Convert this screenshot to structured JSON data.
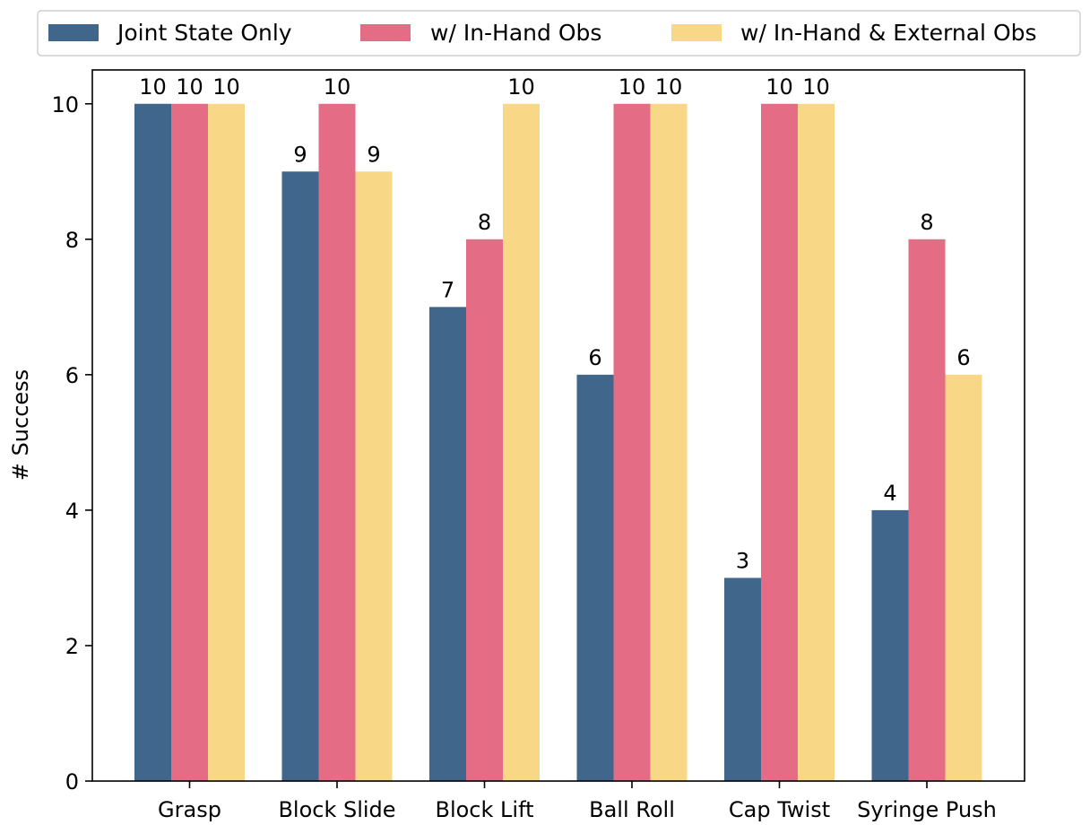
{
  "chart_data": {
    "type": "bar",
    "title": "",
    "xlabel": "",
    "ylabel": "# Success",
    "categories": [
      "Grasp",
      "Block Slide",
      "Block Lift",
      "Ball Roll",
      "Cap Twist",
      "Syringe Push"
    ],
    "series": [
      {
        "name": "Joint State Only",
        "color": "#41668B",
        "values": [
          10,
          9,
          7,
          6,
          3,
          4
        ]
      },
      {
        "name": "w/ In-Hand Obs",
        "color": "#E46C84",
        "values": [
          10,
          10,
          8,
          10,
          10,
          8
        ]
      },
      {
        "name": "w/ In-Hand & External Obs",
        "color": "#F8D887",
        "values": [
          10,
          9,
          10,
          10,
          10,
          6
        ]
      }
    ],
    "ylim": [
      0,
      10.5
    ],
    "yticks": [
      0,
      2,
      4,
      6,
      8,
      10
    ],
    "grid": false,
    "legend_position": "top"
  }
}
